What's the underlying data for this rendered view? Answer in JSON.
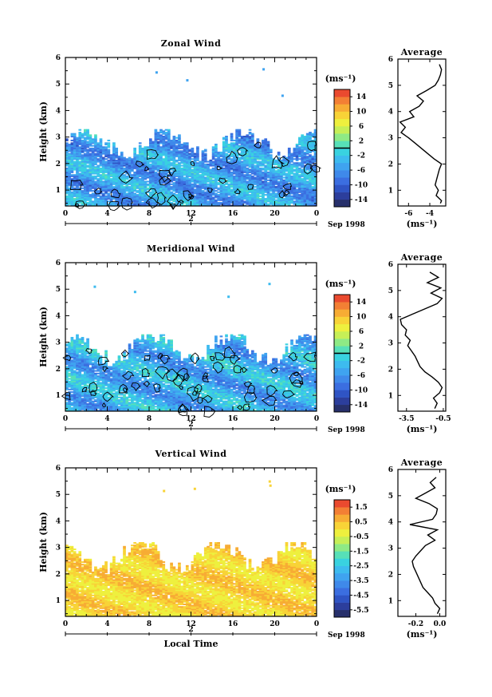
{
  "chart_data": [
    {
      "type": "heatmap",
      "title": "Zonal Wind",
      "ylabel": "Height (km)",
      "xlabel": "",
      "x_ticks": [
        "0",
        "4",
        "8",
        "12",
        "16",
        "20",
        "0"
      ],
      "y_ticks": [
        "1",
        "2",
        "3",
        "4",
        "5",
        "6"
      ],
      "xlim": [
        0,
        24
      ],
      "ylim": [
        0.4,
        6
      ],
      "date_day": "2",
      "date_label": "Sep 1998",
      "colorbar": {
        "unit": "(ms⁻¹)",
        "ticks": [
          "14",
          "10",
          "6",
          "2",
          "-2",
          "-6",
          "-10",
          "-14"
        ],
        "marker_value": 0,
        "min": -16,
        "max": 16
      },
      "field": {
        "top_km": 3.3,
        "mean": -5,
        "spread": 4,
        "contour_level": 0,
        "contour_fraction": 0.2
      },
      "average": {
        "title": "Average",
        "xlabel": "(ms⁻¹)",
        "x_ticks": [
          "-6",
          "-4"
        ],
        "xlim": [
          -7,
          -2.5
        ],
        "profile": [
          [
            0.5,
            -3
          ],
          [
            0.6,
            -2.9
          ],
          [
            0.8,
            -3.4
          ],
          [
            1.0,
            -3.2
          ],
          [
            1.2,
            -3.5
          ],
          [
            1.5,
            -3.3
          ],
          [
            1.8,
            -3.1
          ],
          [
            2.0,
            -2.9
          ],
          [
            2.2,
            -3.6
          ],
          [
            2.4,
            -4.2
          ],
          [
            2.6,
            -4.8
          ],
          [
            2.8,
            -5.4
          ],
          [
            3.0,
            -6.0
          ],
          [
            3.2,
            -6.7
          ],
          [
            3.4,
            -6.3
          ],
          [
            3.6,
            -6.8
          ],
          [
            3.8,
            -5.5
          ],
          [
            4.0,
            -5.9
          ],
          [
            4.2,
            -5.0
          ],
          [
            4.4,
            -4.6
          ],
          [
            4.6,
            -5.2
          ],
          [
            4.8,
            -4.3
          ],
          [
            5.0,
            -3.5
          ],
          [
            5.2,
            -3.2
          ],
          [
            5.4,
            -3.0
          ],
          [
            5.6,
            -2.9
          ],
          [
            5.8,
            -3.1
          ]
        ]
      }
    },
    {
      "type": "heatmap",
      "title": "Meridional Wind",
      "ylabel": "Height (km)",
      "xlabel": "",
      "x_ticks": [
        "0",
        "4",
        "8",
        "12",
        "16",
        "20",
        "0"
      ],
      "y_ticks": [
        "1",
        "2",
        "3",
        "4",
        "5",
        "6"
      ],
      "xlim": [
        0,
        24
      ],
      "ylim": [
        0.4,
        6
      ],
      "date_day": "2",
      "date_label": "Sep 1998",
      "colorbar": {
        "unit": "(ms⁻¹)",
        "ticks": [
          "14",
          "10",
          "6",
          "2",
          "-2",
          "-6",
          "-10",
          "-14"
        ],
        "marker_value": 0,
        "min": -16,
        "max": 16
      },
      "field": {
        "top_km": 3.3,
        "mean": -4,
        "spread": 4,
        "contour_level": 0,
        "contour_fraction": 0.3
      },
      "average": {
        "title": "Average",
        "xlabel": "(ms⁻¹)",
        "x_ticks": [
          "-3.5",
          "-0.5"
        ],
        "xlim": [
          -4.2,
          -0.3
        ],
        "profile": [
          [
            0.5,
            -1.2
          ],
          [
            0.7,
            -1.0
          ],
          [
            0.9,
            -1.3
          ],
          [
            1.1,
            -0.8
          ],
          [
            1.3,
            -0.6
          ],
          [
            1.5,
            -0.9
          ],
          [
            1.7,
            -1.4
          ],
          [
            1.9,
            -2.0
          ],
          [
            2.1,
            -2.4
          ],
          [
            2.3,
            -2.6
          ],
          [
            2.5,
            -2.8
          ],
          [
            2.7,
            -3.1
          ],
          [
            2.9,
            -3.4
          ],
          [
            3.1,
            -3.2
          ],
          [
            3.3,
            -3.6
          ],
          [
            3.5,
            -3.5
          ],
          [
            3.7,
            -3.9
          ],
          [
            3.9,
            -4.0
          ],
          [
            4.1,
            -3.0
          ],
          [
            4.3,
            -2.0
          ],
          [
            4.5,
            -1.0
          ],
          [
            4.7,
            -0.6
          ],
          [
            4.9,
            -1.5
          ],
          [
            5.1,
            -0.7
          ],
          [
            5.3,
            -1.8
          ],
          [
            5.5,
            -0.9
          ],
          [
            5.7,
            -1.6
          ]
        ]
      }
    },
    {
      "type": "heatmap",
      "title": "Vertical Wind",
      "ylabel": "Height (km)",
      "xlabel": "Local Time",
      "x_ticks": [
        "0",
        "4",
        "8",
        "12",
        "16",
        "20",
        "0"
      ],
      "y_ticks": [
        "1",
        "2",
        "3",
        "4",
        "5",
        "6"
      ],
      "xlim": [
        0,
        24
      ],
      "ylim": [
        0.4,
        6
      ],
      "date_day": "2",
      "date_label": "Sep 1998",
      "colorbar": {
        "unit": "(ms⁻¹)",
        "ticks": [
          "1.5",
          "0.5",
          "-0.5",
          "-1.5",
          "-2.5",
          "-3.5",
          "-4.5",
          "-5.5"
        ],
        "marker_value": null,
        "min": -6,
        "max": 2
      },
      "field": {
        "top_km": 3.2,
        "mean": 0.2,
        "spread": 0.5,
        "contour_level": null,
        "contour_fraction": 0
      },
      "average": {
        "title": "Average",
        "xlabel": "(ms⁻¹)",
        "x_ticks": [
          "-0.2",
          "0.0"
        ],
        "xlim": [
          -0.35,
          0.05
        ],
        "profile": [
          [
            0.5,
            -0.02
          ],
          [
            0.7,
            0.0
          ],
          [
            0.9,
            -0.04
          ],
          [
            1.1,
            -0.06
          ],
          [
            1.3,
            -0.1
          ],
          [
            1.5,
            -0.14
          ],
          [
            1.7,
            -0.16
          ],
          [
            1.9,
            -0.18
          ],
          [
            2.1,
            -0.2
          ],
          [
            2.3,
            -0.22
          ],
          [
            2.5,
            -0.23
          ],
          [
            2.7,
            -0.2
          ],
          [
            2.9,
            -0.16
          ],
          [
            3.1,
            -0.12
          ],
          [
            3.3,
            -0.04
          ],
          [
            3.5,
            -0.1
          ],
          [
            3.7,
            -0.02
          ],
          [
            3.9,
            -0.25
          ],
          [
            4.1,
            -0.06
          ],
          [
            4.3,
            -0.03
          ],
          [
            4.5,
            -0.02
          ],
          [
            4.7,
            -0.09
          ],
          [
            4.9,
            -0.2
          ],
          [
            5.1,
            -0.12
          ],
          [
            5.3,
            -0.04
          ],
          [
            5.5,
            -0.08
          ],
          [
            5.7,
            -0.03
          ]
        ]
      }
    }
  ]
}
